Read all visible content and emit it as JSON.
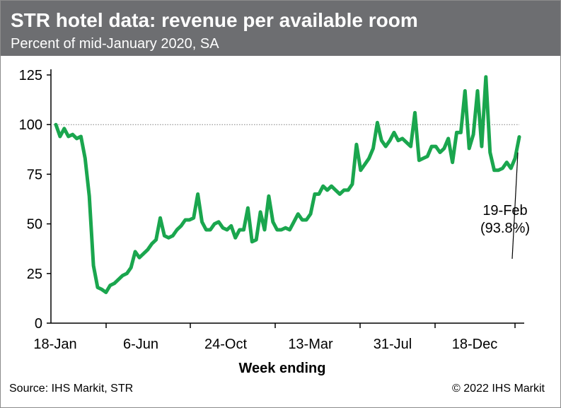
{
  "header": {
    "title": "STR hotel data: revenue per available room",
    "subtitle": "Percent of mid-January 2020, SA"
  },
  "footer": {
    "source": "Source: IHS Markit, STR",
    "copyright": "© 2022 IHS Markit"
  },
  "colors": {
    "header_bg": "#6d6e71",
    "series": "#1aa64e",
    "reference_line": "#808080"
  },
  "chart_data": {
    "type": "line",
    "title": "STR hotel data: revenue per available room",
    "subtitle": "Percent of mid-January 2020, SA",
    "xlabel": "Week ending",
    "ylabel": "",
    "ylim": [
      0,
      125
    ],
    "yticks": [
      0,
      25,
      50,
      75,
      100,
      125
    ],
    "xticks": [
      "18-Jan",
      "6-Jun",
      "24-Oct",
      "13-Mar",
      "31-Jul",
      "18-Dec"
    ],
    "reference_line": 100,
    "grid": false,
    "annotation": {
      "line1": "19-Feb",
      "line2": "(93.8%)"
    },
    "series": [
      {
        "values": [
          100,
          94,
          98,
          94,
          95,
          93,
          94,
          83,
          64,
          29,
          18,
          17,
          15.5,
          19,
          20,
          22,
          24,
          25,
          28,
          36,
          33,
          35,
          37,
          40,
          42,
          53,
          44,
          43,
          44,
          47,
          49,
          52,
          52,
          53,
          65,
          51,
          47,
          47,
          50,
          51,
          48,
          47,
          49,
          43,
          47,
          47,
          58,
          41,
          42,
          56,
          47,
          64,
          51,
          47,
          47,
          48,
          47,
          51,
          55,
          52,
          52,
          55,
          65,
          65,
          69,
          67,
          69,
          67,
          65,
          67,
          67,
          70,
          90,
          77,
          80,
          83,
          88,
          101,
          92,
          89,
          92,
          96,
          92,
          93,
          91,
          89,
          106,
          82,
          83,
          84,
          89,
          89,
          86,
          88,
          93,
          81,
          96,
          96,
          117,
          88,
          95,
          117,
          89,
          124,
          86,
          77,
          77,
          78,
          81,
          78,
          83,
          93.8
        ]
      }
    ]
  }
}
